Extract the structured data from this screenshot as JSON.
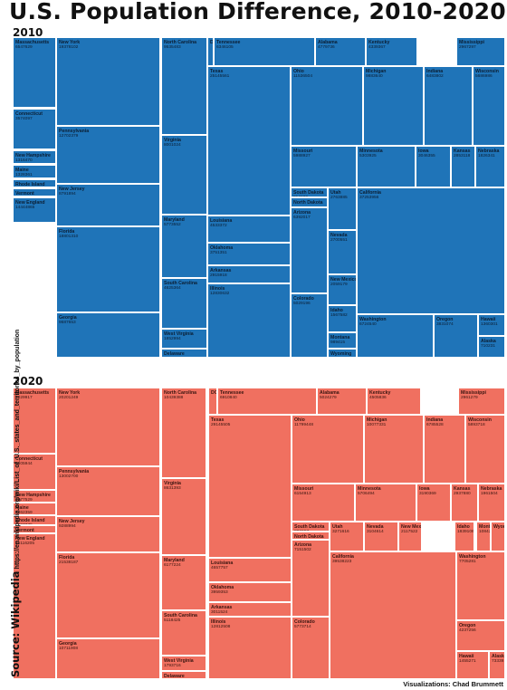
{
  "title": "U.S. Population Difference, 2010-2020",
  "source_lead": "Source: Wikipedia",
  "source_url": "https://en.wikipedia.org/wiki/List_of_U.S._states_and_territories_by_population",
  "credit": "Visualizations: Chad Brummett",
  "colors": {
    "panel_2010": "#1f74b8",
    "panel_2020": "#f07060"
  },
  "chart_data": [
    {
      "type": "treemap",
      "title": "2010",
      "cells": [
        {
          "state": "Massachusetts",
          "population": "6547629"
        },
        {
          "state": "Connecticut",
          "population": "3574097"
        },
        {
          "state": "New Hampshire",
          "population": "1316470"
        },
        {
          "state": "Maine",
          "population": "1328361"
        },
        {
          "state": "Rhode Island",
          "population": "1052567"
        },
        {
          "state": "Vermont",
          "population": ""
        },
        {
          "state": "New England",
          "population": "14444865"
        },
        {
          "state": "New York",
          "population": "19378102"
        },
        {
          "state": "Pennsylvania",
          "population": "12702379"
        },
        {
          "state": "New Jersey",
          "population": "8791894"
        },
        {
          "state": "Florida",
          "population": "18801310"
        },
        {
          "state": "Georgia",
          "population": "9687653"
        },
        {
          "state": "North Carolina",
          "population": "9535483"
        },
        {
          "state": "Virginia",
          "population": "8001024"
        },
        {
          "state": "Maryland",
          "population": "5773552"
        },
        {
          "state": "South Carolina",
          "population": "4625364"
        },
        {
          "state": "West Virginia",
          "population": "1852994"
        },
        {
          "state": "Delaware",
          "population": ""
        },
        {
          "state": "DC",
          "population": ""
        },
        {
          "state": "Tennessee",
          "population": "6346105"
        },
        {
          "state": "Alabama",
          "population": "4779736"
        },
        {
          "state": "Kentucky",
          "population": "4339367"
        },
        {
          "state": "Mississippi",
          "population": "2967297"
        },
        {
          "state": "Texas",
          "population": "25145561"
        },
        {
          "state": "Louisiana",
          "population": "4533372"
        },
        {
          "state": "Oklahoma",
          "population": "3751351"
        },
        {
          "state": "Arkansas",
          "population": "2915918"
        },
        {
          "state": "Illinois",
          "population": "12830632"
        },
        {
          "state": "Ohio",
          "population": "11536504"
        },
        {
          "state": "Michigan",
          "population": "9883640"
        },
        {
          "state": "Indiana",
          "population": "6483802"
        },
        {
          "state": "Wisconsin",
          "population": "5686986"
        },
        {
          "state": "Missouri",
          "population": "5988927"
        },
        {
          "state": "Minnesota",
          "population": "5303925"
        },
        {
          "state": "Iowa",
          "population": "3046355"
        },
        {
          "state": "Kansas",
          "population": "2853118"
        },
        {
          "state": "Nebraska",
          "population": "1826341"
        },
        {
          "state": "South Dakota",
          "population": "814180"
        },
        {
          "state": "North Dakota",
          "population": ""
        },
        {
          "state": "Arizona",
          "population": "6392017"
        },
        {
          "state": "Colorado",
          "population": "5029196"
        },
        {
          "state": "Utah",
          "population": "2763885"
        },
        {
          "state": "Nevada",
          "population": "2700551"
        },
        {
          "state": "New Mexico",
          "population": "2059179"
        },
        {
          "state": "Idaho",
          "population": "1567582"
        },
        {
          "state": "Montana",
          "population": "989415"
        },
        {
          "state": "Wyoming",
          "population": ""
        },
        {
          "state": "California",
          "population": "37253956"
        },
        {
          "state": "Washington",
          "population": "6724540"
        },
        {
          "state": "Oregon",
          "population": "3831074"
        },
        {
          "state": "Hawaii",
          "population": "1360301"
        },
        {
          "state": "Alaska",
          "population": "710231"
        }
      ]
    },
    {
      "type": "treemap",
      "title": "2020",
      "cells": [
        {
          "state": "Massachusetts",
          "population": "7029917"
        },
        {
          "state": "Connecticut",
          "population": "3605944"
        },
        {
          "state": "New Hampshire",
          "population": "1377529"
        },
        {
          "state": "Maine",
          "population": "1362359"
        },
        {
          "state": "Rhode Island",
          "population": "1097379"
        },
        {
          "state": "Vermont",
          "population": "643077"
        },
        {
          "state": "New England",
          "population": "15116205"
        },
        {
          "state": "New York",
          "population": "20201249"
        },
        {
          "state": "Pennsylvania",
          "population": "13002700"
        },
        {
          "state": "New Jersey",
          "population": "9288994"
        },
        {
          "state": "Florida",
          "population": "21538187"
        },
        {
          "state": "Georgia",
          "population": "10711908"
        },
        {
          "state": "North Carolina",
          "population": "10439388"
        },
        {
          "state": "Virginia",
          "population": "8631393"
        },
        {
          "state": "Maryland",
          "population": "6177224"
        },
        {
          "state": "South Carolina",
          "population": "5118425"
        },
        {
          "state": "West Virginia",
          "population": "1793716"
        },
        {
          "state": "Delaware",
          "population": "989948"
        },
        {
          "state": "DC",
          "population": ""
        },
        {
          "state": "Tennessee",
          "population": "6910840"
        },
        {
          "state": "Alabama",
          "population": "5024279"
        },
        {
          "state": "Kentucky",
          "population": "4505836"
        },
        {
          "state": "Mississippi",
          "population": "2961279"
        },
        {
          "state": "Texas",
          "population": "29145505"
        },
        {
          "state": "Louisiana",
          "population": "4657757"
        },
        {
          "state": "Oklahoma",
          "population": "3959353"
        },
        {
          "state": "Arkansas",
          "population": "3011524"
        },
        {
          "state": "Illinois",
          "population": "12812508"
        },
        {
          "state": "Ohio",
          "population": "11799448"
        },
        {
          "state": "Michigan",
          "population": "10077331"
        },
        {
          "state": "Indiana",
          "population": "6785528"
        },
        {
          "state": "Wisconsin",
          "population": "5893718"
        },
        {
          "state": "Missouri",
          "population": "6154913"
        },
        {
          "state": "Minnesota",
          "population": "5706494"
        },
        {
          "state": "Iowa",
          "population": "3190369"
        },
        {
          "state": "Kansas",
          "population": "2937880"
        },
        {
          "state": "Nebraska",
          "population": "1961504"
        },
        {
          "state": "South Dakota",
          "population": "886667"
        },
        {
          "state": "North Dakota",
          "population": ""
        },
        {
          "state": "Arizona",
          "population": "7151502"
        },
        {
          "state": "Colorado",
          "population": "5773714"
        },
        {
          "state": "Utah",
          "population": "3271616"
        },
        {
          "state": "Nevada",
          "population": "3104614"
        },
        {
          "state": "New Mexico",
          "population": "2117522"
        },
        {
          "state": "Idaho",
          "population": "1839106"
        },
        {
          "state": "Montana",
          "population": "1084225"
        },
        {
          "state": "Wyoming",
          "population": ""
        },
        {
          "state": "California",
          "population": "39538223"
        },
        {
          "state": "Washington",
          "population": "7705281"
        },
        {
          "state": "Oregon",
          "population": "4237256"
        },
        {
          "state": "Hawaii",
          "population": "1455271"
        },
        {
          "state": "Alaska",
          "population": "733391"
        }
      ]
    }
  ]
}
